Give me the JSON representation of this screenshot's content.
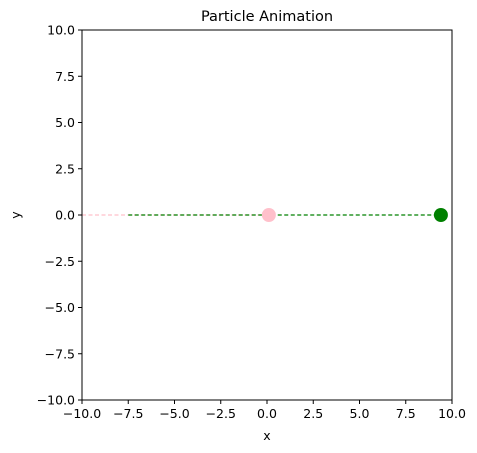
{
  "chart_data": {
    "type": "line",
    "title": "Particle Animation",
    "xlabel": "x",
    "ylabel": "y",
    "xlim": [
      -10,
      10
    ],
    "ylim": [
      -10,
      10
    ],
    "xticks": [
      -10,
      -7.5,
      -5,
      -2.5,
      0,
      2.5,
      5,
      7.5,
      10
    ],
    "yticks": [
      -10,
      -7.5,
      -5,
      -2.5,
      0,
      2.5,
      5,
      7.5,
      10
    ],
    "xtick_labels": [
      "−10.0",
      "−7.5",
      "−5.0",
      "−2.5",
      "0.0",
      "2.5",
      "5.0",
      "7.5",
      "10.0"
    ],
    "ytick_labels": [
      "−10.0",
      "−7.5",
      "−5.0",
      "−2.5",
      "0.0",
      "2.5",
      "5.0",
      "7.5",
      "10.0"
    ],
    "grid": false,
    "legend": "none",
    "series": [
      {
        "color": "#ffc0cb",
        "trail": {
          "x": [
            -10,
            0.1
          ],
          "y": [
            0,
            0
          ],
          "style": "dashed"
        },
        "particle": {
          "x": 0.1,
          "y": 0
        }
      },
      {
        "color": "#008000",
        "trail": {
          "x": [
            -7.5,
            9.4
          ],
          "y": [
            0,
            0
          ],
          "style": "dashed"
        },
        "particle": {
          "x": 9.4,
          "y": 0
        }
      }
    ]
  }
}
